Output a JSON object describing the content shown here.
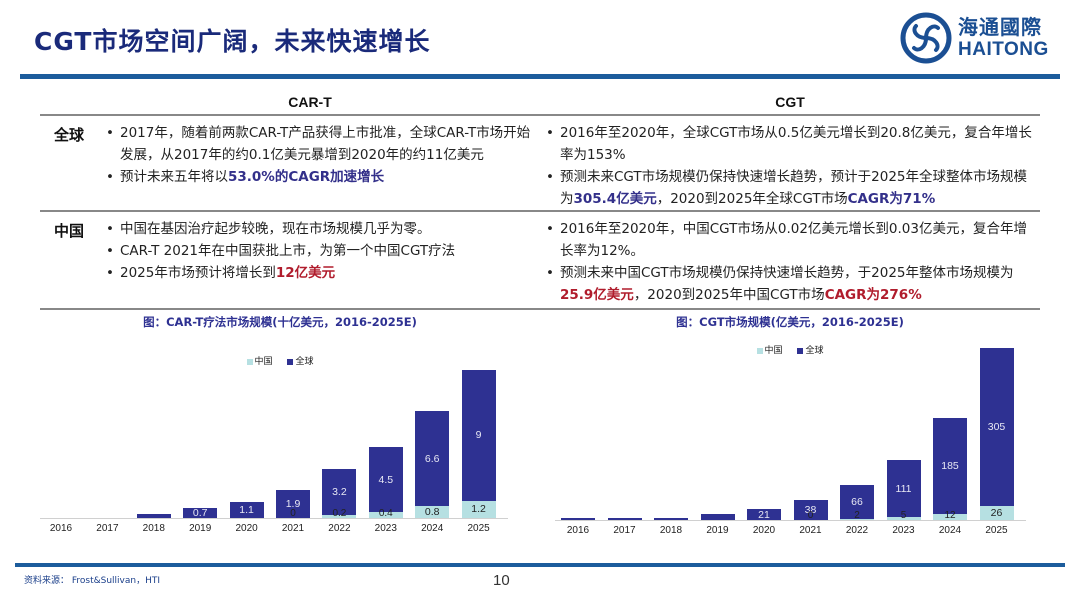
{
  "header": {
    "title": "CGT市场空间广阔，未来快速增长",
    "logo_cn": "海通國際",
    "logo_en": "HAITONG"
  },
  "table": {
    "columns": [
      "CAR-T",
      "CGT"
    ],
    "rows": [
      {
        "label": "全球",
        "cart": [
          {
            "text": "2017年，随着前两款CAR-T产品获得上市批准，全球CAR-T市场开始发展，从2017年的约0.1亿美元暴增到2020年的约11亿美元"
          },
          {
            "pre": "预计未来五年将以",
            "hl": "53.0%的CAGR加速增长",
            "post": ""
          }
        ],
        "cgt": [
          {
            "text": "2016年至2020年，全球CGT市场从0.5亿美元增长到20.8亿美元，复合年增长率为153%"
          },
          {
            "pre": "预测未来CGT市场规模仍保持快速增长趋势，预计于2025年全球整体市场规模为",
            "hl": "305.4亿美元",
            "mid": "，2020到2025年全球CGT市场",
            "hl2": "CAGR为71%"
          }
        ]
      },
      {
        "label": "中国",
        "cart": [
          {
            "text": "中国在基因治疗起步较晚，现在市场规模几乎为零。"
          },
          {
            "text": "CAR-T 2021年在中国获批上市，为第一个中国CGT疗法"
          },
          {
            "pre": "2025年市场预计将增长到",
            "hl": "12亿美元",
            "post": ""
          }
        ],
        "cgt": [
          {
            "text": "2016年至2020年，中国CGT市场从0.02亿美元增长到0.03亿美元，复合年增长率为12%。"
          },
          {
            "pre": "预测未来中国CGT市场规模仍保持快速增长趋势，于2025年整体市场规模为",
            "hl": "25.9亿美元",
            "mid": "，2020到2025年中国CGT市场",
            "hl2": "CAGR为276%"
          }
        ]
      }
    ]
  },
  "colors": {
    "global": "#2e3192",
    "china": "#b6e0e2",
    "accent_blue": "#1c5c9c",
    "highlight_red": "#b01c2c"
  },
  "chart_data": [
    {
      "type": "bar",
      "stacked": true,
      "title": "图：CAR-T疗法市场规模(十亿美元，2016-2025E)",
      "legend": [
        "中国",
        "全球"
      ],
      "legend_position": "top",
      "categories": [
        "2016",
        "2017",
        "2018",
        "2019",
        "2020",
        "2021",
        "2022",
        "2023",
        "2024",
        "2025"
      ],
      "series": [
        {
          "name": "中国",
          "values": [
            0,
            0,
            0,
            0,
            0,
            0,
            0.2,
            0.4,
            0.8,
            1.2
          ],
          "labels": [
            "",
            "",
            "",
            "",
            "",
            "0",
            "0.2",
            "0.4",
            "0.8",
            "1.2"
          ]
        },
        {
          "name": "全球",
          "values": [
            0,
            0,
            0.3,
            0.7,
            1.1,
            1.9,
            3.2,
            4.5,
            6.6,
            9
          ],
          "labels": [
            "",
            "",
            "0.3",
            "0.7",
            "1.1",
            "1.9",
            "3.2",
            "4.5",
            "6.6",
            "9"
          ]
        }
      ],
      "xlabel": "",
      "ylabel": "",
      "grid": false
    },
    {
      "type": "bar",
      "stacked": true,
      "title": "图：CGT市场规模(亿美元，2016-2025E)",
      "legend": [
        "中国",
        "全球"
      ],
      "legend_position": "top",
      "categories": [
        "2016",
        "2017",
        "2018",
        "2019",
        "2020",
        "2021",
        "2022",
        "2023",
        "2024",
        "2025"
      ],
      "series": [
        {
          "name": "中国",
          "values": [
            0,
            0,
            0,
            0,
            0,
            0,
            2,
            5,
            12,
            26
          ],
          "labels": [
            "",
            "",
            "",
            "",
            "",
            "0",
            "2",
            "5",
            "12",
            "26"
          ]
        },
        {
          "name": "全球",
          "values": [
            0.5,
            1,
            3,
            12,
            21,
            38,
            66,
            111,
            185,
            305
          ],
          "labels": [
            "",
            "",
            "",
            "12",
            "21",
            "38",
            "66",
            "111",
            "185",
            "305"
          ]
        }
      ],
      "xlabel": "",
      "ylabel": "",
      "grid": false
    }
  ],
  "footer": {
    "source": "资料来源： Frost&Sullivan，HTI",
    "page_number": "10"
  }
}
